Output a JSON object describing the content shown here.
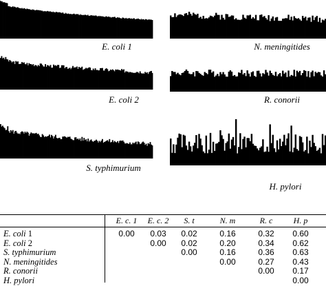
{
  "chart_data": [
    {
      "type": "bar",
      "name": "E. coli 1",
      "shape": "decreasing",
      "seed": 1,
      "start": 0.92,
      "end": 0.48,
      "noise": 0.03,
      "bars": 220
    },
    {
      "type": "bar",
      "name": "N. meningitides",
      "shape": "flat-noisy",
      "seed": 2,
      "start": 0.62,
      "end": 0.5,
      "noise": 0.18,
      "bars": 110
    },
    {
      "type": "bar",
      "name": "E. coli 2",
      "shape": "decreasing",
      "seed": 3,
      "start": 0.85,
      "end": 0.48,
      "noise": 0.1,
      "bars": 150
    },
    {
      "type": "bar",
      "name": "R. conorii",
      "shape": "flat-noisy",
      "seed": 4,
      "start": 0.55,
      "end": 0.52,
      "noise": 0.22,
      "bars": 110
    },
    {
      "type": "bar",
      "name": "S. typhimurium",
      "shape": "decreasing",
      "seed": 5,
      "start": 0.8,
      "end": 0.38,
      "noise": 0.12,
      "bars": 150
    },
    {
      "type": "bar",
      "name": "H. pylori",
      "shape": "flat-spiky",
      "seed": 6,
      "start": 0.38,
      "end": 0.38,
      "noise": 0.35,
      "bars": 110
    }
  ],
  "captions": {
    "ecoli1": "E. coli 1",
    "nmen": "N. meningitides",
    "ecoli2": "E. coli 2",
    "rcon": "R. conorii",
    "styph": "S. typhimurium",
    "hpyl": "H. pylori"
  },
  "table": {
    "headers": [
      "E. c. 1",
      "E. c. 2",
      "S. t",
      "N. m",
      "R. c",
      "H. p"
    ],
    "rows": [
      {
        "label_it": "E. coli",
        "label_rest": " 1",
        "values": [
          "0.00",
          "0.03",
          "0.02",
          "0.16",
          "0.32",
          "0.60"
        ]
      },
      {
        "label_it": "E. coli",
        "label_rest": " 2",
        "values": [
          "",
          "0.00",
          "0.02",
          "0.20",
          "0.34",
          "0.62"
        ]
      },
      {
        "label_it": "S. typhimurium",
        "label_rest": "",
        "values": [
          "",
          "",
          "0.00",
          "0.16",
          "0.36",
          "0.63"
        ]
      },
      {
        "label_it": "N. meningitides",
        "label_rest": "",
        "values": [
          "",
          "",
          "",
          "0.00",
          "0.27",
          "0.43"
        ]
      },
      {
        "label_it": "R. conorii",
        "label_rest": "",
        "values": [
          "",
          "",
          "",
          "",
          "0.00",
          "0.17"
        ]
      },
      {
        "label_it": "H. pylori",
        "label_rest": "",
        "values": [
          "",
          "",
          "",
          "",
          "",
          "0.00"
        ]
      }
    ]
  }
}
